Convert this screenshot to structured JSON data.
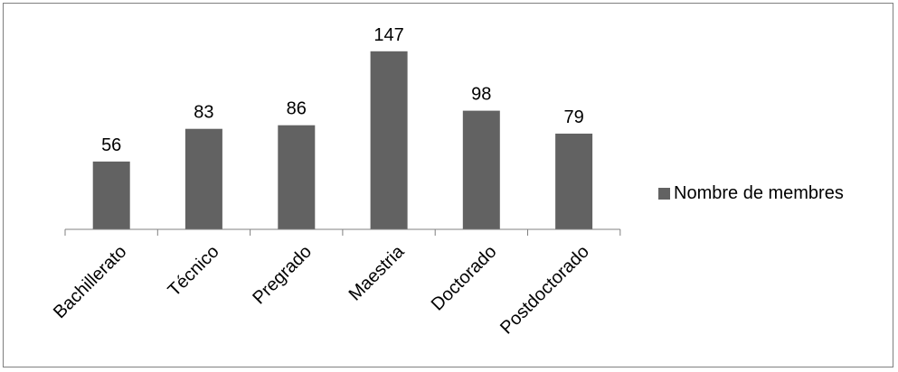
{
  "chart_data": {
    "type": "bar",
    "categories": [
      "Bachillerato",
      "Técnico",
      "Pregrado",
      "Maestria",
      "Doctorado",
      "Postdoctorado"
    ],
    "values": [
      56,
      83,
      86,
      147,
      98,
      79
    ],
    "series": [
      {
        "name": "Nombre de membres",
        "values": [
          56,
          83,
          86,
          147,
          98,
          79
        ]
      }
    ],
    "ylim": [
      0,
      170
    ],
    "grid": false,
    "legend_position": "right",
    "bar_color": "#626262"
  }
}
